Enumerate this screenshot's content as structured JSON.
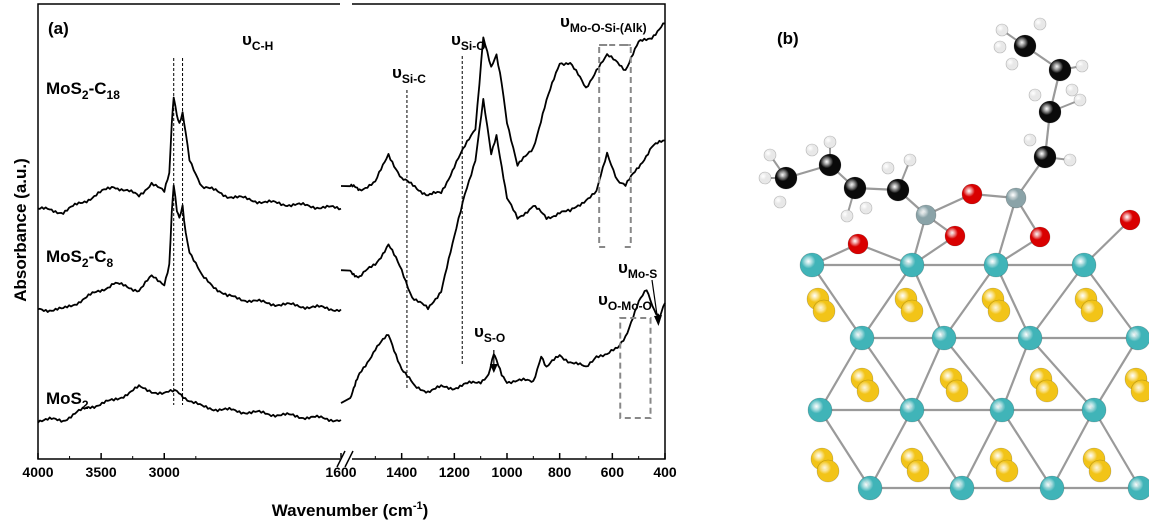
{
  "panel_a": {
    "label": "(a)"
  },
  "panel_b": {
    "label": "(b)"
  },
  "chart_data": {
    "type": "line",
    "title": "",
    "xlabel": "Wavenumber (cm",
    "xlabel_sup": "-1",
    "xlabel_end": ")",
    "ylabel": "Absorbance (a.u.)",
    "broken_x_axis": true,
    "x_segments": [
      {
        "range": [
          4000,
          1600
        ],
        "ticks": [
          4000,
          3500,
          3000
        ]
      },
      {
        "range": [
          1600,
          400
        ],
        "ticks": [
          1600,
          1400,
          1200,
          1000,
          800,
          600,
          400
        ]
      }
    ],
    "tick_labels_left": [
      "4000",
      "3500",
      "3000"
    ],
    "tick_labels_right": [
      "1600",
      "1400",
      "1200",
      "1000",
      "800",
      "600",
      "400"
    ],
    "y_ticks": "none",
    "series": [
      {
        "name": "MoS2-C18",
        "label_main": "MoS",
        "label_sub1": "2",
        "label_mid": "-C",
        "label_sub2": "18",
        "points": [
          [
            4000,
            0.135
          ],
          [
            3800,
            0.13
          ],
          [
            3600,
            0.15
          ],
          [
            3400,
            0.17
          ],
          [
            3200,
            0.155
          ],
          [
            3100,
            0.175
          ],
          [
            3000,
            0.16
          ],
          [
            2960,
            0.19
          ],
          [
            2940,
            0.27
          ],
          [
            2925,
            0.31
          ],
          [
            2900,
            0.28
          ],
          [
            2880,
            0.265
          ],
          [
            2855,
            0.28
          ],
          [
            2830,
            0.25
          ],
          [
            2800,
            0.21
          ],
          [
            2700,
            0.17
          ],
          [
            2500,
            0.155
          ],
          [
            2200,
            0.145
          ],
          [
            1900,
            0.14
          ],
          [
            1600,
            0.135
          ],
          [
            1600,
            0.17
          ],
          [
            1560,
            0.165
          ],
          [
            1500,
            0.175
          ],
          [
            1450,
            0.22
          ],
          [
            1400,
            0.18
          ],
          [
            1350,
            0.17
          ],
          [
            1300,
            0.155
          ],
          [
            1250,
            0.16
          ],
          [
            1200,
            0.2
          ],
          [
            1160,
            0.23
          ],
          [
            1120,
            0.26
          ],
          [
            1090,
            0.4
          ],
          [
            1060,
            0.35
          ],
          [
            1040,
            0.37
          ],
          [
            1020,
            0.33
          ],
          [
            1000,
            0.27
          ],
          [
            960,
            0.2
          ],
          [
            900,
            0.23
          ],
          [
            850,
            0.3
          ],
          [
            800,
            0.36
          ],
          [
            760,
            0.36
          ],
          [
            700,
            0.32
          ],
          [
            660,
            0.35
          ],
          [
            620,
            0.37
          ],
          [
            580,
            0.36
          ],
          [
            550,
            0.35
          ],
          [
            500,
            0.39
          ],
          [
            450,
            0.4
          ],
          [
            400,
            0.42
          ]
        ]
      },
      {
        "name": "MoS2-C8",
        "label_main": "MoS",
        "label_sub1": "2",
        "label_mid": "-C",
        "label_sub2": "8",
        "points": [
          [
            4000,
            -0.02
          ],
          [
            3800,
            -0.02
          ],
          [
            3600,
            0.0
          ],
          [
            3400,
            0.02
          ],
          [
            3200,
            0.01
          ],
          [
            3100,
            0.03
          ],
          [
            3000,
            0.02
          ],
          [
            2960,
            0.05
          ],
          [
            2940,
            0.13
          ],
          [
            2925,
            0.17
          ],
          [
            2900,
            0.13
          ],
          [
            2880,
            0.12
          ],
          [
            2855,
            0.14
          ],
          [
            2830,
            0.1
          ],
          [
            2800,
            0.07
          ],
          [
            2700,
            0.03
          ],
          [
            2500,
            0.0
          ],
          [
            2200,
            -0.01
          ],
          [
            1900,
            -0.015
          ],
          [
            1600,
            -0.02
          ],
          [
            1600,
            0.04
          ],
          [
            1560,
            0.03
          ],
          [
            1500,
            0.05
          ],
          [
            1450,
            0.08
          ],
          [
            1400,
            0.04
          ],
          [
            1360,
            0.0
          ],
          [
            1300,
            -0.02
          ],
          [
            1250,
            0.01
          ],
          [
            1200,
            0.09
          ],
          [
            1160,
            0.16
          ],
          [
            1120,
            0.21
          ],
          [
            1090,
            0.3
          ],
          [
            1060,
            0.22
          ],
          [
            1040,
            0.25
          ],
          [
            1020,
            0.2
          ],
          [
            1000,
            0.15
          ],
          [
            960,
            0.12
          ],
          [
            900,
            0.14
          ],
          [
            850,
            0.12
          ],
          [
            800,
            0.13
          ],
          [
            760,
            0.13
          ],
          [
            700,
            0.15
          ],
          [
            660,
            0.16
          ],
          [
            620,
            0.22
          ],
          [
            580,
            0.18
          ],
          [
            550,
            0.17
          ],
          [
            500,
            0.2
          ],
          [
            450,
            0.23
          ],
          [
            400,
            0.24
          ]
        ]
      },
      {
        "name": "MoS2",
        "label_main": "MoS",
        "label_sub1": "2",
        "label_mid": "",
        "label_sub2": "",
        "points": [
          [
            4000,
            -0.19
          ],
          [
            3800,
            -0.19
          ],
          [
            3600,
            -0.17
          ],
          [
            3400,
            -0.16
          ],
          [
            3200,
            -0.14
          ],
          [
            3100,
            -0.145
          ],
          [
            3000,
            -0.15
          ],
          [
            2900,
            -0.145
          ],
          [
            2800,
            -0.16
          ],
          [
            2700,
            -0.17
          ],
          [
            2500,
            -0.175
          ],
          [
            2200,
            -0.18
          ],
          [
            1900,
            -0.185
          ],
          [
            1600,
            -0.19
          ],
          [
            1600,
            -0.16
          ],
          [
            1560,
            -0.12
          ],
          [
            1500,
            -0.08
          ],
          [
            1450,
            -0.06
          ],
          [
            1400,
            -0.11
          ],
          [
            1350,
            -0.14
          ],
          [
            1300,
            -0.145
          ],
          [
            1250,
            -0.14
          ],
          [
            1200,
            -0.14
          ],
          [
            1150,
            -0.135
          ],
          [
            1100,
            -0.13
          ],
          [
            1070,
            -0.12
          ],
          [
            1050,
            -0.09
          ],
          [
            1040,
            -0.1
          ],
          [
            1020,
            -0.12
          ],
          [
            1000,
            -0.13
          ],
          [
            960,
            -0.13
          ],
          [
            900,
            -0.13
          ],
          [
            870,
            -0.09
          ],
          [
            850,
            -0.11
          ],
          [
            800,
            -0.09
          ],
          [
            760,
            -0.1
          ],
          [
            700,
            -0.11
          ],
          [
            660,
            -0.09
          ],
          [
            620,
            -0.09
          ],
          [
            580,
            -0.08
          ],
          [
            550,
            -0.06
          ],
          [
            500,
            -0.01
          ],
          [
            470,
            0.01
          ],
          [
            440,
            -0.02
          ],
          [
            420,
            -0.03
          ],
          [
            400,
            -0.01
          ]
        ]
      }
    ],
    "annotations": [
      {
        "id": "ch",
        "main": "υ",
        "sub": "C-H",
        "x": [
          2925,
          2855
        ]
      },
      {
        "id": "sic",
        "main": "υ",
        "sub": "Si-C",
        "x": [
          1380
        ]
      },
      {
        "id": "sio",
        "main": "υ",
        "sub": "Si-O",
        "x": [
          1170
        ]
      },
      {
        "id": "moosi",
        "main": "υ",
        "sub": "Mo-O-Si-(Alk)",
        "box": [
          650,
          530
        ]
      },
      {
        "id": "so",
        "main": "υ",
        "sub": "S-O",
        "x": [
          1050
        ]
      },
      {
        "id": "moomo",
        "main": "υ",
        "sub": "O-Mo-O",
        "box": [
          570,
          450
        ]
      },
      {
        "id": "mos",
        "main": "υ",
        "sub": "Mo-S",
        "x": [
          410
        ]
      }
    ]
  },
  "structure": {
    "description_visible": false,
    "colors": {
      "mo": "#40b4b8",
      "s": "#f2c418",
      "o": "#d90000",
      "si": "#8aa3a8",
      "c": "#0a0a0a",
      "h": "#e8e8e8"
    }
  }
}
